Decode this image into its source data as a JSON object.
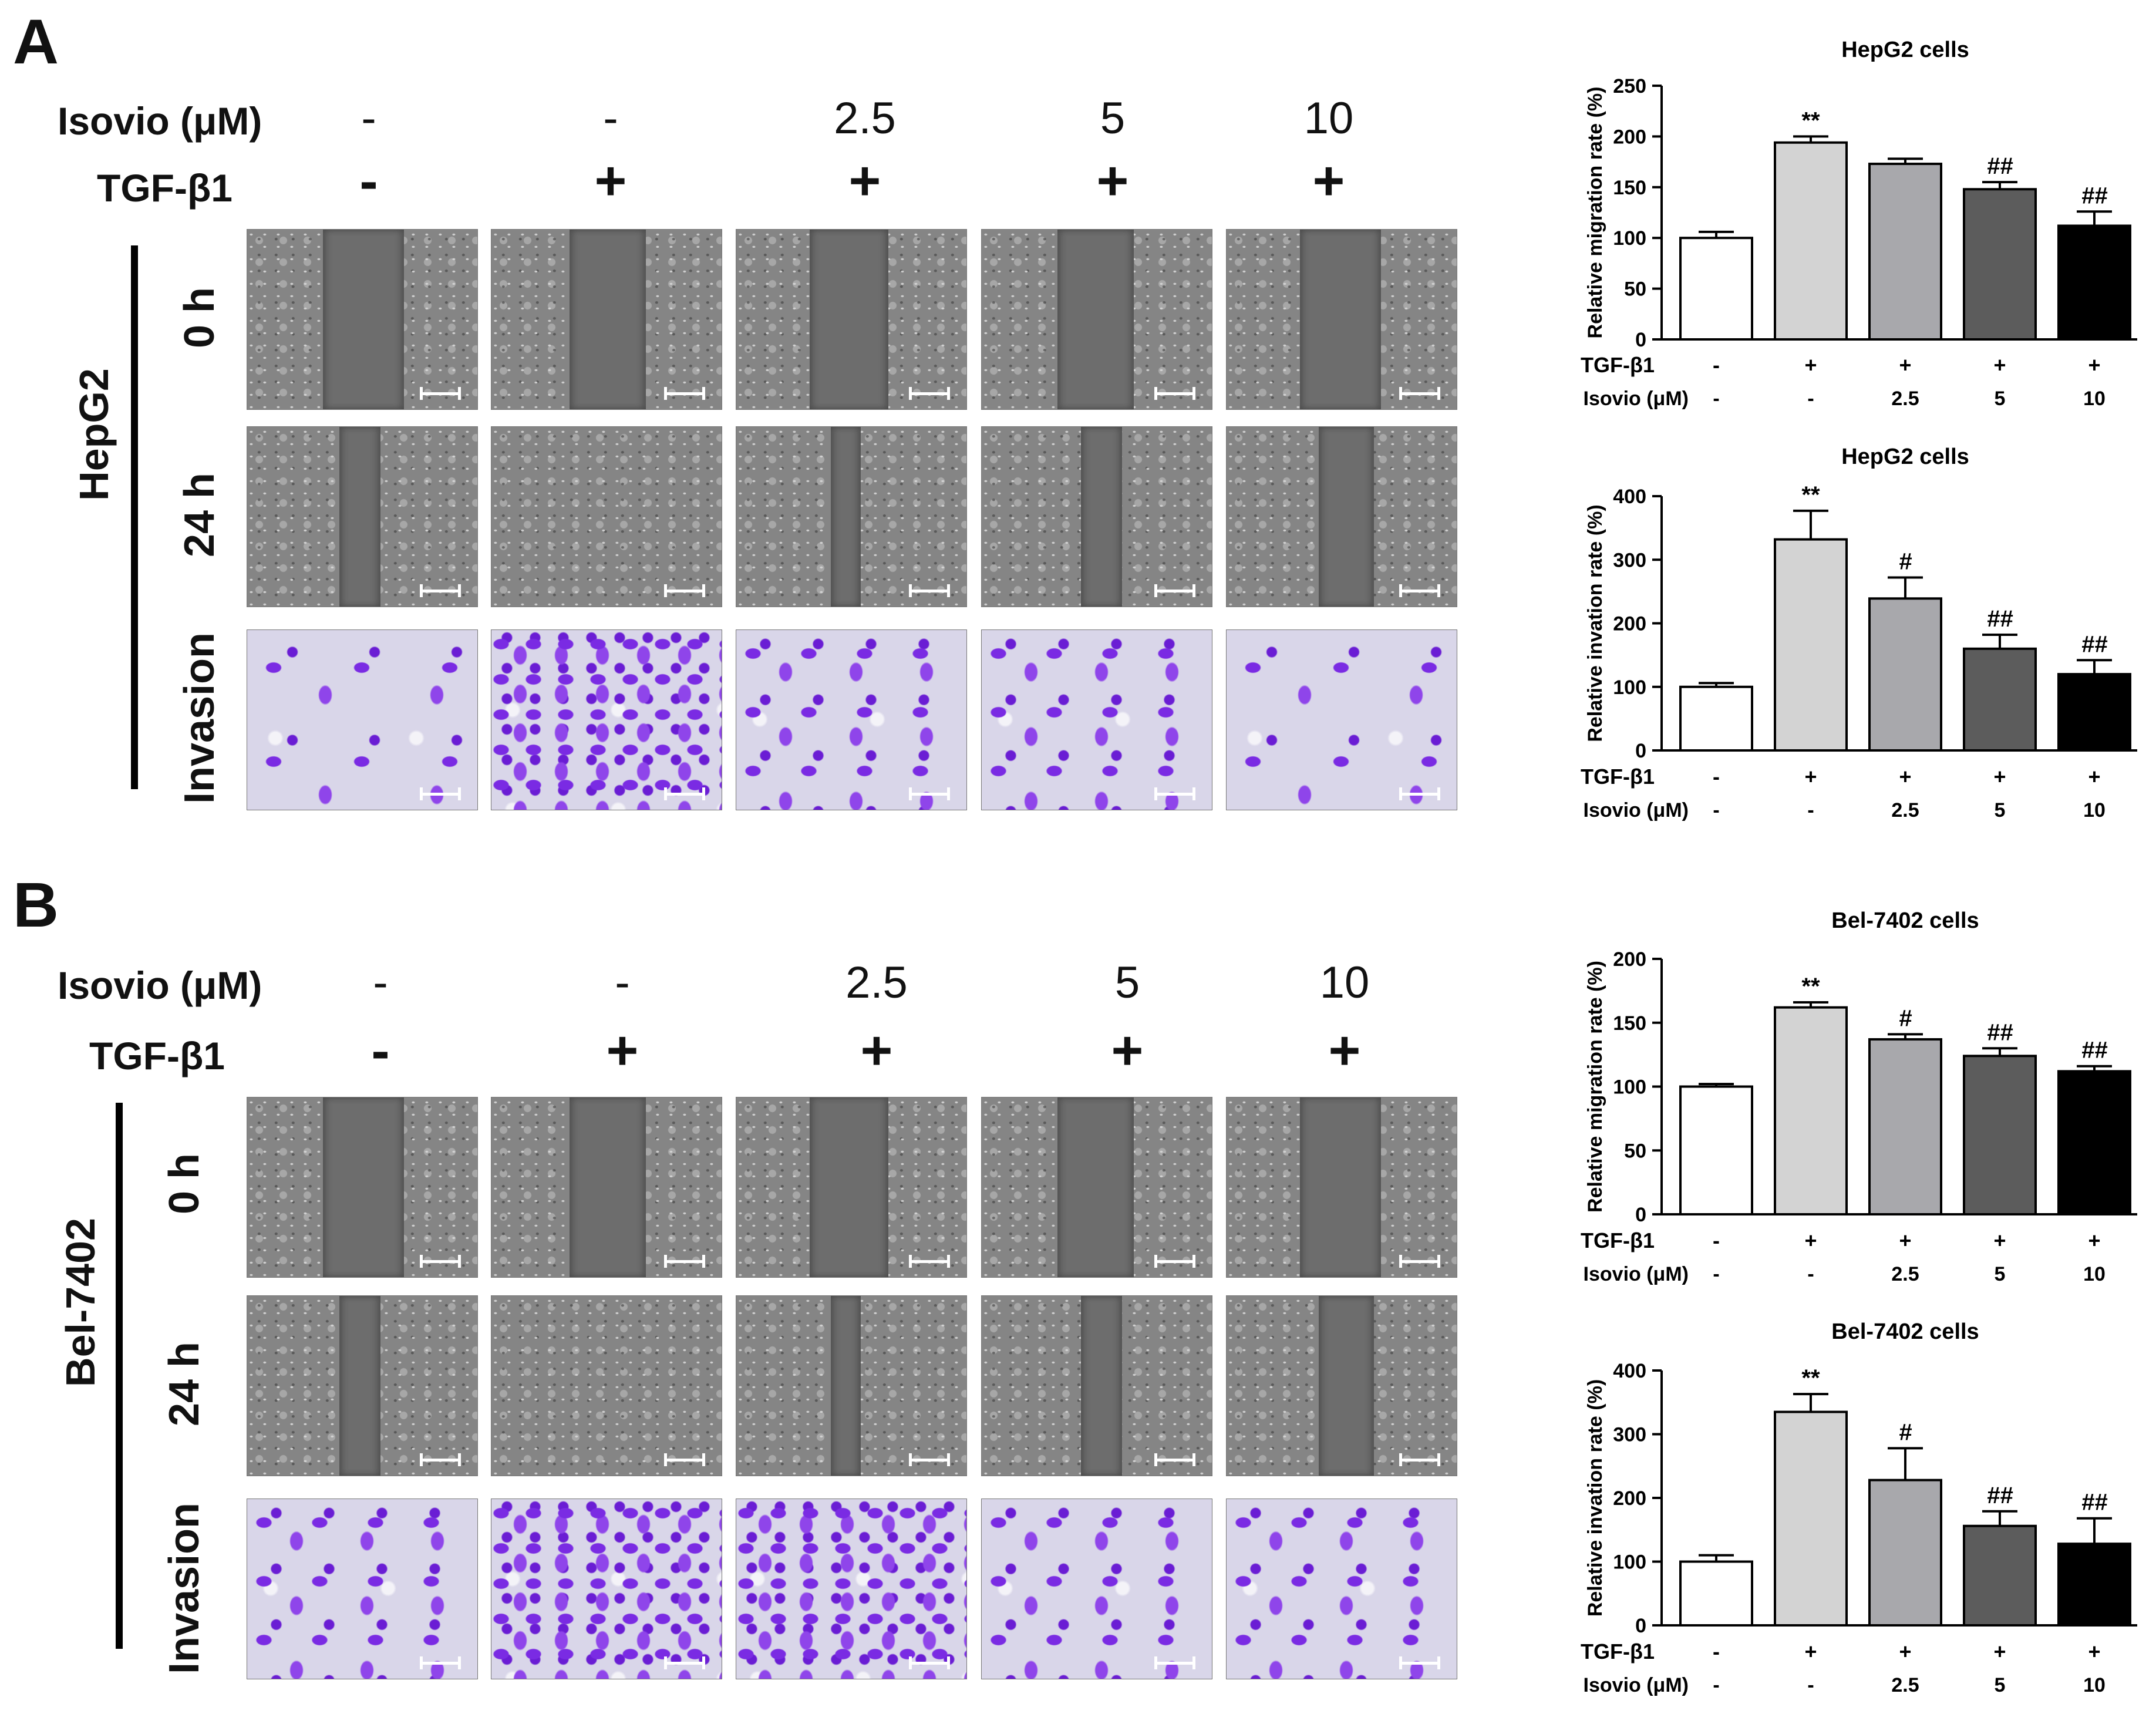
{
  "panels": [
    {
      "letter": "A",
      "cell_line": "HepG2",
      "isovio_label": "Isovio (μM)",
      "tgf_label": "TGF-β1",
      "isovio_values": [
        "-",
        "-",
        "2.5",
        "5",
        "10"
      ],
      "tgf_values": [
        "-",
        "+",
        "+",
        "+",
        "+"
      ],
      "row_labels": [
        "0 h",
        "24 h",
        "Invasion"
      ]
    },
    {
      "letter": "B",
      "cell_line": "Bel-7402",
      "isovio_label": "Isovio (μM)",
      "tgf_label": "TGF-β1",
      "isovio_values": [
        "-",
        "-",
        "2.5",
        "5",
        "10"
      ],
      "tgf_values": [
        "-",
        "+",
        "+",
        "+",
        "+"
      ],
      "row_labels": [
        "0 h",
        "24 h",
        "Invasion"
      ]
    }
  ],
  "bar_colors": [
    "#ffffff",
    "#d3d3d3",
    "#a8a8ac",
    "#5c5c5c",
    "#000000"
  ],
  "chart_data": [
    {
      "type": "bar",
      "title": "HepG2 cells",
      "ylabel": "Relative migration rate (%)",
      "ylim": [
        0,
        250
      ],
      "yticks": [
        0,
        50,
        100,
        150,
        200,
        250
      ],
      "row_labels": [
        "TGF-β1",
        "Isovio (μM)"
      ],
      "tgf_values": [
        "-",
        "+",
        "+",
        "+",
        "+"
      ],
      "isovio_values": [
        "-",
        "-",
        "2.5",
        "5",
        "10"
      ],
      "values": [
        100,
        194,
        173,
        148,
        112
      ],
      "errors": [
        6,
        6,
        5,
        7,
        14
      ],
      "annotations": [
        "",
        "**",
        "",
        "##",
        "##"
      ]
    },
    {
      "type": "bar",
      "title": "HepG2 cells",
      "ylabel": "Relative invation rate (%)",
      "ylim": [
        0,
        400
      ],
      "yticks": [
        0,
        100,
        200,
        300,
        400
      ],
      "row_labels": [
        "TGF-β1",
        "Isovio (μM)"
      ],
      "tgf_values": [
        "-",
        "+",
        "+",
        "+",
        "+"
      ],
      "isovio_values": [
        "-",
        "-",
        "2.5",
        "5",
        "10"
      ],
      "values": [
        100,
        332,
        239,
        160,
        120
      ],
      "errors": [
        6,
        45,
        33,
        22,
        22
      ],
      "annotations": [
        "",
        "**",
        "#",
        "##",
        "##"
      ]
    },
    {
      "type": "bar",
      "title": "Bel-7402 cells",
      "ylabel": "Relative migration rate (%)",
      "ylim": [
        0,
        200
      ],
      "yticks": [
        0,
        50,
        100,
        150,
        200
      ],
      "row_labels": [
        "TGF-β1",
        "Isovio (μM)"
      ],
      "tgf_values": [
        "-",
        "+",
        "+",
        "+",
        "+"
      ],
      "isovio_values": [
        "-",
        "-",
        "2.5",
        "5",
        "10"
      ],
      "values": [
        100,
        162,
        137,
        124,
        112
      ],
      "errors": [
        2,
        4,
        4,
        6,
        4
      ],
      "annotations": [
        "",
        "**",
        "#",
        "##",
        "##"
      ]
    },
    {
      "type": "bar",
      "title": "Bel-7402 cells",
      "ylabel": "Relative invation rate (%)",
      "ylim": [
        0,
        400
      ],
      "yticks": [
        0,
        100,
        200,
        300,
        400
      ],
      "row_labels": [
        "TGF-β1",
        "Isovio (μM)"
      ],
      "tgf_values": [
        "-",
        "+",
        "+",
        "+",
        "+"
      ],
      "isovio_values": [
        "-",
        "-",
        "2.5",
        "5",
        "10"
      ],
      "values": [
        100,
        335,
        228,
        156,
        128
      ],
      "errors": [
        10,
        28,
        50,
        23,
        40
      ],
      "annotations": [
        "",
        "**",
        "#",
        "##",
        "##"
      ]
    }
  ]
}
